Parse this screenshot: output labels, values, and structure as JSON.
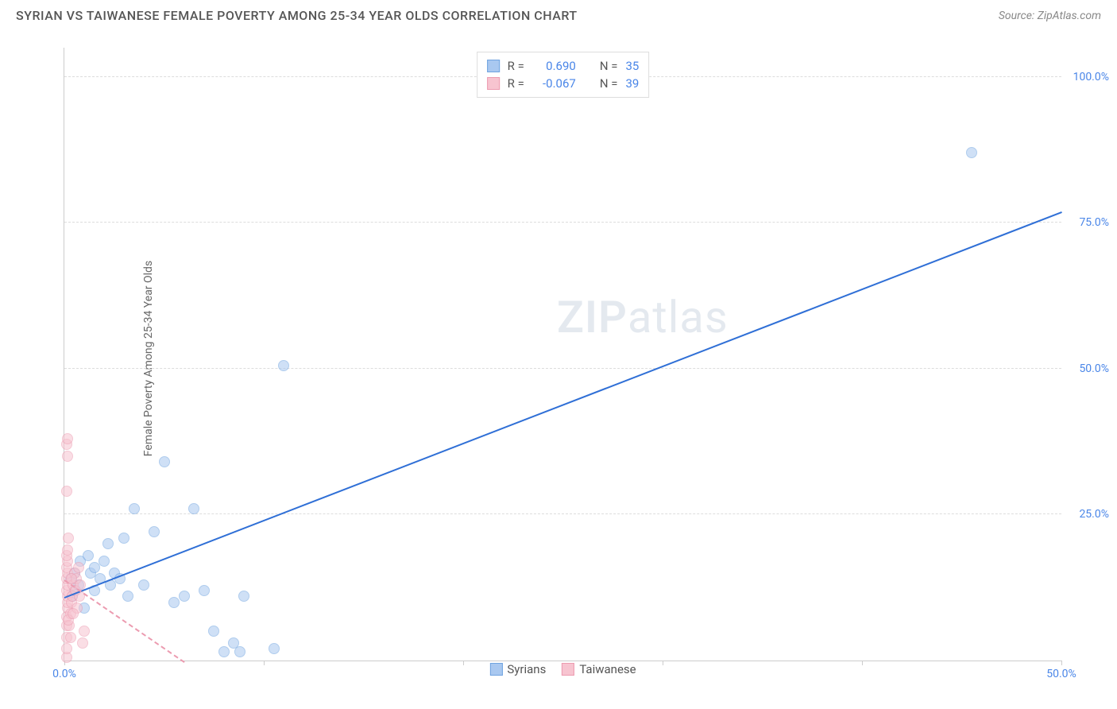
{
  "header": {
    "title": "SYRIAN VS TAIWANESE FEMALE POVERTY AMONG 25-34 YEAR OLDS CORRELATION CHART",
    "source": "Source: ZipAtlas.com"
  },
  "chart": {
    "type": "scatter",
    "y_axis_label": "Female Poverty Among 25-34 Year Olds",
    "xlim": [
      0,
      50
    ],
    "ylim": [
      0,
      105
    ],
    "x_ticks": [
      0,
      10,
      20,
      30,
      40,
      50
    ],
    "x_tick_labels": [
      "0.0%",
      "",
      "",
      "",
      "",
      "50.0%"
    ],
    "y_ticks": [
      25,
      50,
      75,
      100
    ],
    "y_tick_labels": [
      "25.0%",
      "50.0%",
      "75.0%",
      "100.0%"
    ],
    "background_color": "#ffffff",
    "grid_color": "#dddddd",
    "axis_color": "#cccccc",
    "tick_label_color": "#4a86e8",
    "marker_radius": 7,
    "marker_stroke_width": 1.5,
    "watermark": {
      "text_bold": "ZIP",
      "text_light": "atlas"
    },
    "series": [
      {
        "name": "Syrians",
        "fill_color": "#a9c8f0",
        "stroke_color": "#6fa3e0",
        "fill_opacity": 0.55,
        "trend": {
          "from": [
            0,
            11
          ],
          "to": [
            50,
            77
          ],
          "color": "#2f6fd6",
          "width": 2,
          "style": "solid"
        },
        "stats": {
          "R_label": "R =",
          "R_value": "0.690",
          "N_label": "N =",
          "N_value": "35"
        },
        "points": [
          [
            0.3,
            14
          ],
          [
            0.5,
            15
          ],
          [
            0.4,
            11
          ],
          [
            0.5,
            12
          ],
          [
            0.7,
            13
          ],
          [
            0.8,
            17
          ],
          [
            1.0,
            9
          ],
          [
            1.2,
            18
          ],
          [
            1.3,
            15
          ],
          [
            1.5,
            12
          ],
          [
            1.5,
            16
          ],
          [
            1.8,
            14
          ],
          [
            2.0,
            17
          ],
          [
            2.2,
            20
          ],
          [
            2.3,
            13
          ],
          [
            2.5,
            15
          ],
          [
            2.8,
            14
          ],
          [
            3.0,
            21
          ],
          [
            3.2,
            11
          ],
          [
            3.5,
            26
          ],
          [
            4.5,
            22
          ],
          [
            5.0,
            34
          ],
          [
            5.5,
            10
          ],
          [
            6.5,
            26
          ],
          [
            6.0,
            11
          ],
          [
            7.0,
            12
          ],
          [
            8.0,
            1.5
          ],
          [
            8.5,
            3
          ],
          [
            8.8,
            1.5
          ],
          [
            9.0,
            11
          ],
          [
            10.5,
            2
          ],
          [
            11.0,
            50.5
          ],
          [
            7.5,
            5
          ],
          [
            4.0,
            13
          ],
          [
            45.5,
            87
          ]
        ]
      },
      {
        "name": "Taiwanese",
        "fill_color": "#f7c4d0",
        "stroke_color": "#ec9bb0",
        "fill_opacity": 0.55,
        "trend": {
          "from": [
            0,
            14
          ],
          "to": [
            6,
            0
          ],
          "color": "#ec9bb0",
          "width": 2,
          "style": "dashed"
        },
        "stats": {
          "R_label": "R =",
          "R_value": "-0.067",
          "N_label": "N =",
          "N_value": "39"
        },
        "points": [
          [
            0.1,
            0.5
          ],
          [
            0.1,
            2
          ],
          [
            0.1,
            4
          ],
          [
            0.1,
            6
          ],
          [
            0.1,
            7.5
          ],
          [
            0.15,
            9
          ],
          [
            0.15,
            10
          ],
          [
            0.15,
            11
          ],
          [
            0.1,
            12
          ],
          [
            0.15,
            13
          ],
          [
            0.1,
            14
          ],
          [
            0.15,
            15
          ],
          [
            0.1,
            16
          ],
          [
            0.15,
            17
          ],
          [
            0.1,
            18
          ],
          [
            0.15,
            19
          ],
          [
            0.2,
            21
          ],
          [
            0.1,
            29
          ],
          [
            0.15,
            35
          ],
          [
            0.1,
            37
          ],
          [
            0.15,
            38
          ],
          [
            0.3,
            8
          ],
          [
            0.35,
            10
          ],
          [
            0.4,
            11
          ],
          [
            0.45,
            13
          ],
          [
            0.5,
            15
          ],
          [
            0.55,
            12
          ],
          [
            0.6,
            14
          ],
          [
            0.65,
            9
          ],
          [
            0.7,
            16
          ],
          [
            0.75,
            11
          ],
          [
            0.8,
            13
          ],
          [
            0.9,
            3
          ],
          [
            1.0,
            5
          ],
          [
            0.25,
            6
          ],
          [
            0.3,
            4
          ],
          [
            0.35,
            14
          ],
          [
            0.2,
            7
          ],
          [
            0.45,
            8
          ]
        ]
      }
    ],
    "bottom_legend": [
      {
        "label": "Syrians",
        "fill": "#a9c8f0",
        "stroke": "#6fa3e0"
      },
      {
        "label": "Taiwanese",
        "fill": "#f7c4d0",
        "stroke": "#ec9bb0"
      }
    ]
  }
}
